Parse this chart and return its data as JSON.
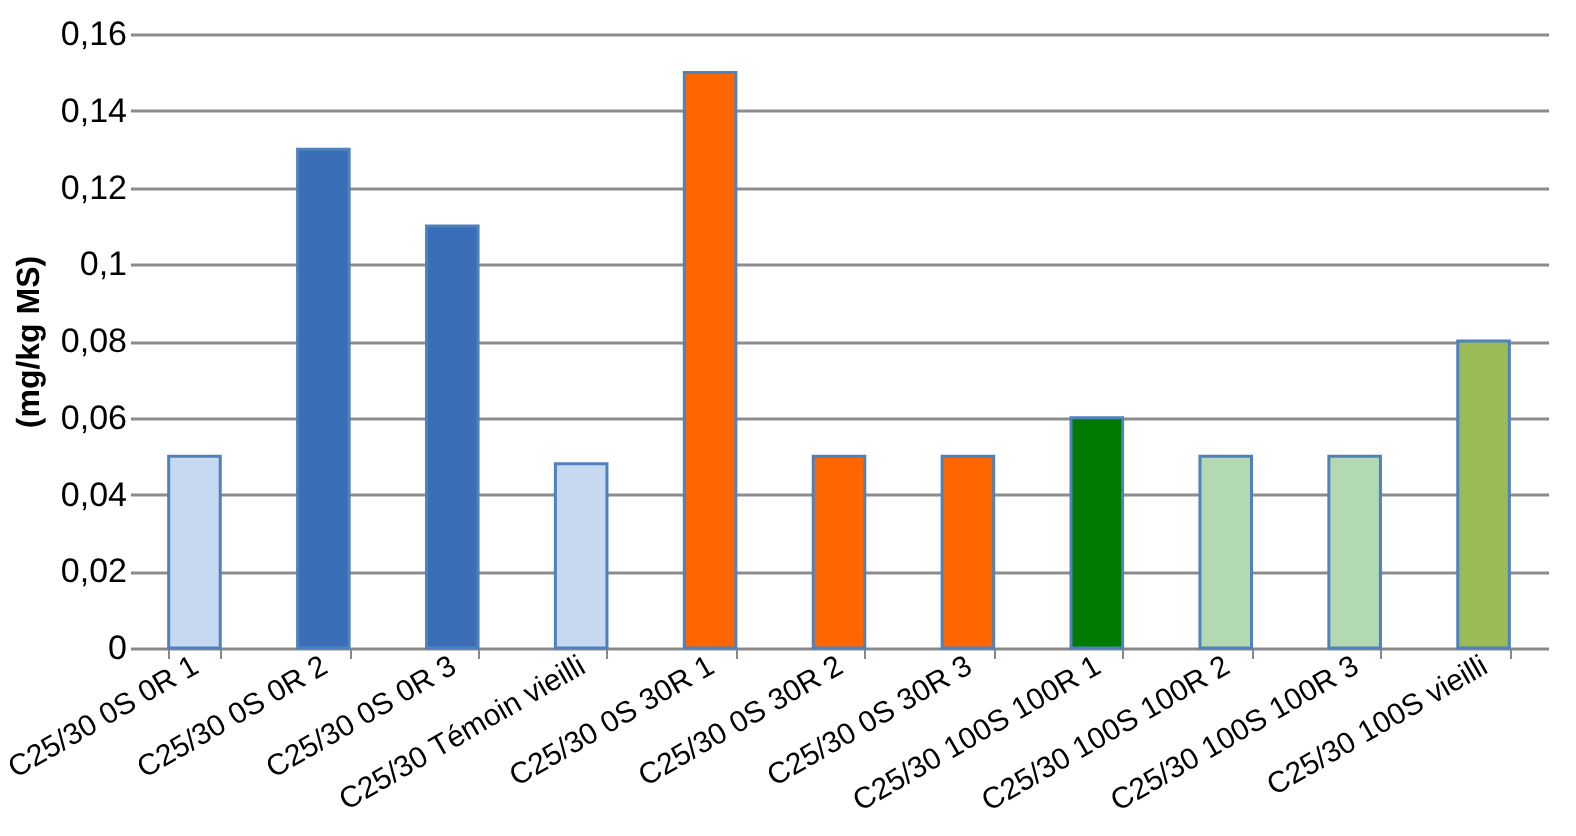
{
  "chart_data": {
    "type": "bar",
    "ylabel": "(mg/kg MS)",
    "categories": [
      "C25/30 0S 0R 1",
      "C25/30 0S 0R 2",
      "C25/30 0S 0R 3",
      "C25/30 Témoin vieilli",
      "C25/30 0S 30R 1",
      "C25/30 0S 30R 2",
      "C25/30 0S 30R 3",
      "C25/30 100S 100R 1",
      "C25/30 100S 100R 2",
      "C25/30 100S 100R 3",
      "C25/30 100S vieilli"
    ],
    "values": [
      0.05,
      0.13,
      0.11,
      0.048,
      0.15,
      0.05,
      0.05,
      0.06,
      0.05,
      0.05,
      0.08
    ],
    "colors": [
      "#c6d9f0",
      "#3a6fb8",
      "#3a6fb8",
      "#c6d9f0",
      "#ff6600",
      "#ff6600",
      "#ff6600",
      "#007a00",
      "#b3d9b3",
      "#b3d9b3",
      "#9bbb59"
    ],
    "ylim": [
      0,
      0.16
    ],
    "yticks": [
      {
        "value": 0,
        "label": "0"
      },
      {
        "value": 0.02,
        "label": "0,02"
      },
      {
        "value": 0.04,
        "label": "0,04"
      },
      {
        "value": 0.06,
        "label": "0,06"
      },
      {
        "value": 0.08,
        "label": "0,08"
      },
      {
        "value": 0.1,
        "label": "0,1"
      },
      {
        "value": 0.12,
        "label": "0,12"
      },
      {
        "value": 0.14,
        "label": "0,14"
      },
      {
        "value": 0.16,
        "label": "0,16"
      }
    ],
    "grid": "y"
  }
}
